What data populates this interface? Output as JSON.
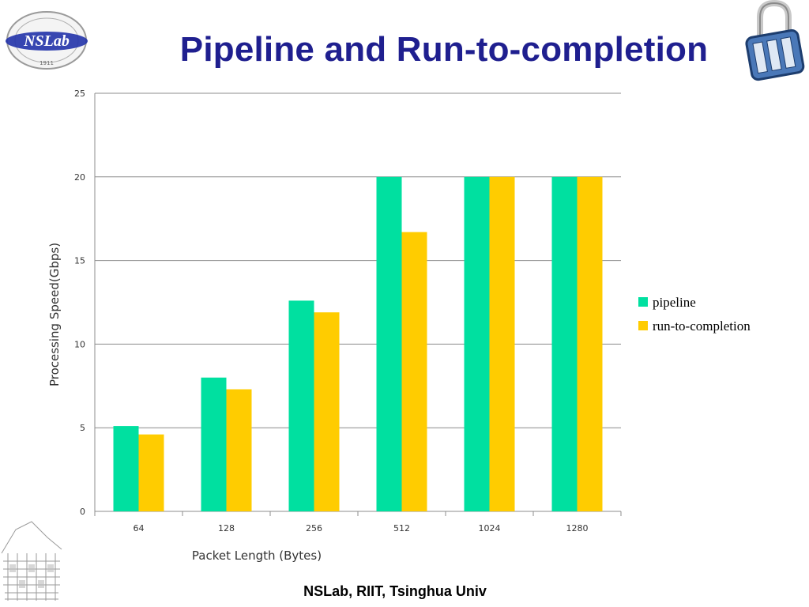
{
  "slide": {
    "title": "Pipeline and Run-to-completion",
    "footer": "NSLab,  RIIT,  Tsinghua Univ",
    "logo_text": "NSLab",
    "logo_year": "1911"
  },
  "colors": {
    "pipeline": "#00e0a0",
    "run_to_completion": "#ffcc00",
    "title": "#1f1f8f",
    "grid": "#8c8c8c"
  },
  "chart_data": {
    "type": "bar",
    "title": "",
    "xlabel": "Packet Length (Bytes)",
    "ylabel": "Processing Speed(Gbps)",
    "categories": [
      "64",
      "128",
      "256",
      "512",
      "1024",
      "1280"
    ],
    "series": [
      {
        "name": "pipeline",
        "values": [
          5.1,
          8.0,
          12.6,
          20.0,
          20.0,
          20.0
        ]
      },
      {
        "name": "run-to-completion",
        "values": [
          4.6,
          7.3,
          11.9,
          16.7,
          20.0,
          20.0
        ]
      }
    ],
    "ylim": [
      0,
      25
    ],
    "yticks": [
      0,
      5,
      10,
      15,
      20,
      25
    ],
    "grid": true,
    "legend": "right"
  }
}
